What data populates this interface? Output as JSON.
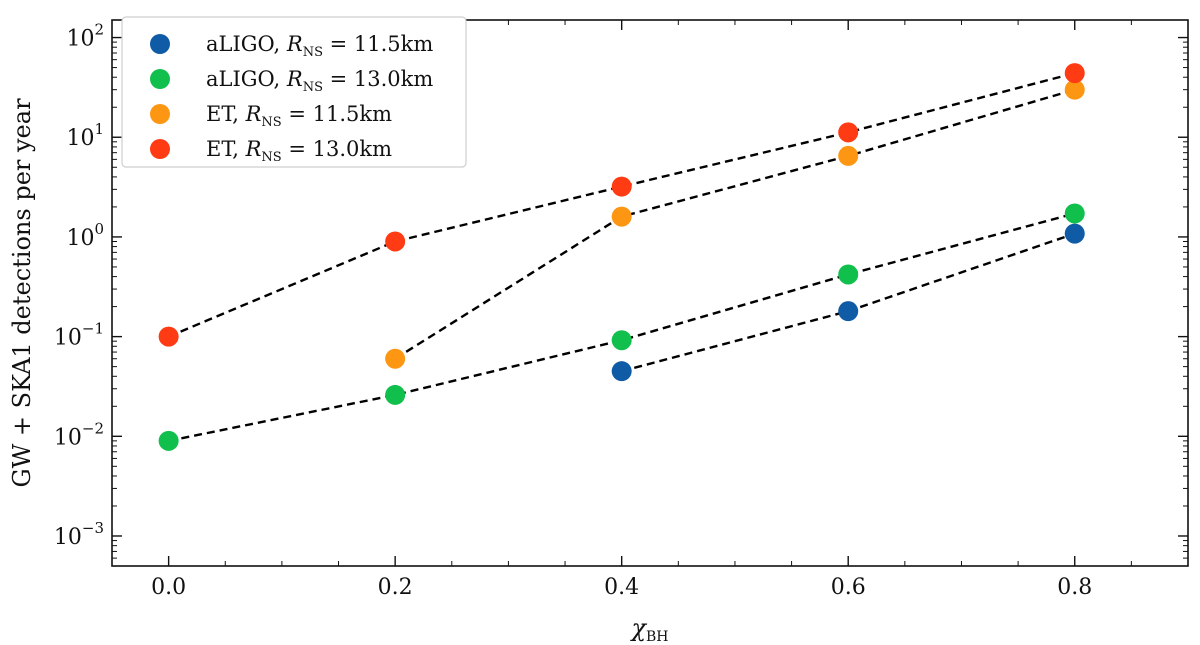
{
  "chart_data": {
    "type": "scatter",
    "yscale": "log",
    "title": "",
    "xlabel": "χ",
    "xlabel_sub": "BH",
    "ylabel": "GW + SKA1 detections per year",
    "xlim": [
      -0.05,
      0.9
    ],
    "ylim": [
      0.0005,
      150
    ],
    "x_ticks": [
      0.0,
      0.2,
      0.4,
      0.6,
      0.8
    ],
    "x_tick_labels": [
      "0.0",
      "0.2",
      "0.4",
      "0.6",
      "0.8"
    ],
    "y_ticks": [
      0.001,
      0.01,
      0.1,
      1,
      10,
      100
    ],
    "y_tick_labels": [
      {
        "base": "10",
        "exp": "−3"
      },
      {
        "base": "10",
        "exp": "−2"
      },
      {
        "base": "10",
        "exp": "−1"
      },
      {
        "base": "10",
        "exp": "0"
      },
      {
        "base": "10",
        "exp": "1"
      },
      {
        "base": "10",
        "exp": "2"
      }
    ],
    "legend_position": "upper-left",
    "series": [
      {
        "name": "aLIGO, R_NS = 11.5km",
        "label_prefix": "aLIGO, ",
        "label_var": "R",
        "label_sub": "NS",
        "label_suffix": " = 11.5km",
        "color": "#0f5ba6",
        "x": [
          0.4,
          0.6,
          0.8
        ],
        "y": [
          0.045,
          0.18,
          1.08
        ]
      },
      {
        "name": "aLIGO, R_NS = 13.0km",
        "label_prefix": "aLIGO, ",
        "label_var": "R",
        "label_sub": "NS",
        "label_suffix": " = 13.0km",
        "color": "#11c04c",
        "x": [
          0.0,
          0.2,
          0.4,
          0.6,
          0.8
        ],
        "y": [
          0.009,
          0.026,
          0.092,
          0.42,
          1.72
        ]
      },
      {
        "name": "ET, R_NS = 11.5km",
        "label_prefix": "ET, ",
        "label_var": "R",
        "label_sub": "NS",
        "label_suffix": " = 11.5km",
        "color": "#fd9613",
        "x": [
          0.2,
          0.4,
          0.6,
          0.8
        ],
        "y": [
          0.06,
          1.6,
          6.5,
          30
        ]
      },
      {
        "name": "ET, R_NS = 13.0km",
        "label_prefix": "ET, ",
        "label_var": "R",
        "label_sub": "NS",
        "label_suffix": " = 13.0km",
        "color": "#ff3b13",
        "x": [
          0.0,
          0.2,
          0.4,
          0.6,
          0.8
        ],
        "y": [
          0.1,
          0.9,
          3.2,
          11.2,
          44
        ]
      }
    ]
  }
}
